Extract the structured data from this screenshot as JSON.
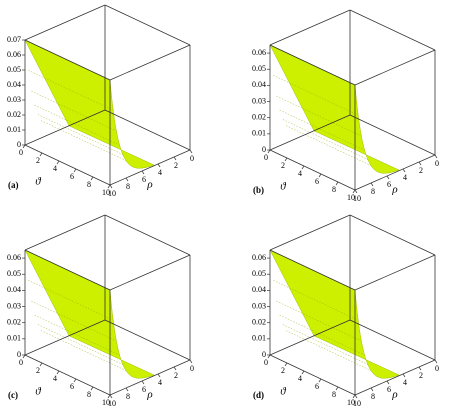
{
  "chart_data": [
    {
      "type": "surface3d",
      "label": "(a)",
      "xlabel": "ϑ",
      "ylabel": "ρ",
      "color": "#ccf000",
      "xlim": [
        0,
        10
      ],
      "xticks": [
        0,
        2,
        4,
        6,
        8,
        10
      ],
      "ylim": [
        0,
        10
      ],
      "yticks": [
        0,
        2,
        4,
        6,
        8,
        10
      ],
      "zlim": [
        0,
        0.07
      ],
      "zticks": [
        0,
        0.01,
        0.02,
        0.03,
        0.04,
        0.05,
        0.06,
        0.07
      ]
    },
    {
      "type": "surface3d",
      "label": "(b)",
      "xlabel": "ϑ",
      "ylabel": "ρ",
      "color": "#ccf000",
      "xlim": [
        0,
        10
      ],
      "xticks": [
        0,
        2,
        4,
        6,
        8,
        10
      ],
      "ylim": [
        0,
        10
      ],
      "yticks": [
        0,
        2,
        4,
        6,
        8,
        10
      ],
      "zlim": [
        0,
        0.065
      ],
      "zticks": [
        0,
        0.01,
        0.02,
        0.03,
        0.04,
        0.05,
        0.06
      ]
    },
    {
      "type": "surface3d",
      "label": "(c)",
      "xlabel": "ϑ",
      "ylabel": "ρ",
      "color": "#ccf000",
      "xlim": [
        0,
        10
      ],
      "xticks": [
        0,
        2,
        4,
        6,
        8,
        10
      ],
      "ylim": [
        0,
        10
      ],
      "yticks": [
        0,
        2,
        4,
        6,
        8,
        10
      ],
      "zlim": [
        0,
        0.065
      ],
      "zticks": [
        0,
        0.01,
        0.02,
        0.03,
        0.04,
        0.05,
        0.06
      ]
    },
    {
      "type": "surface3d",
      "label": "(d)",
      "xlabel": "ϑ",
      "ylabel": "ρ",
      "color": "#ccf000",
      "xlim": [
        0,
        10
      ],
      "xticks": [
        0,
        2,
        4,
        6,
        8,
        10
      ],
      "ylim": [
        0,
        10
      ],
      "yticks": [
        0,
        2,
        4,
        6,
        8,
        10
      ],
      "zlim": [
        0,
        0.065
      ],
      "zticks": [
        0,
        0.01,
        0.02,
        0.03,
        0.04,
        0.05,
        0.06
      ]
    }
  ]
}
